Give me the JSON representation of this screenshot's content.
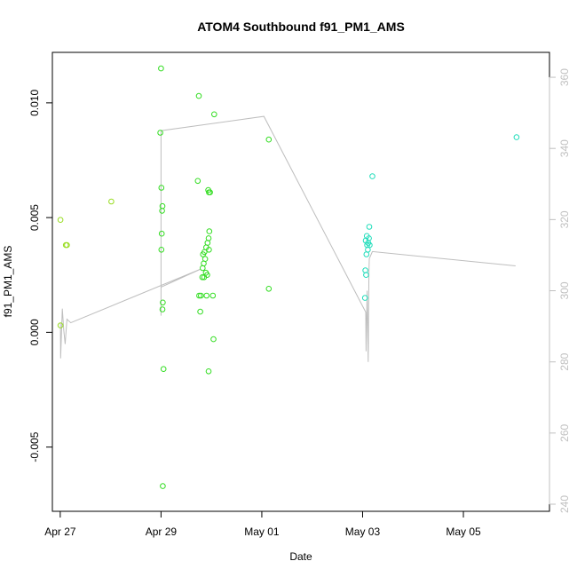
{
  "chart_data": {
    "type": "scatter",
    "title": "ATOM4 Southbound f91_PM1_AMS",
    "xlabel": "Date",
    "ylabel": "f91_PM1_AMS",
    "x_ticks": [
      "Apr 27",
      "Apr 29",
      "May 01",
      "May 03",
      "May 05"
    ],
    "y_ticks": [
      "-0.005",
      "0.000",
      "0.005",
      "0.010"
    ],
    "y2_ticks": [
      "240",
      "260",
      "280",
      "300",
      "320",
      "340",
      "360"
    ],
    "xlim": [
      "2012-04-26 20:15",
      "2012-05-06 17:00"
    ],
    "ylim": [
      -0.0078,
      0.0122
    ],
    "y2lim": [
      238,
      367
    ],
    "colors": {
      "point_green": "#33dd22",
      "point_lime": "#99dd22",
      "point_cyan": "#22ddbb",
      "line": "#bebebe",
      "axis": "#000000",
      "axis_right": "#c0c0c0"
    },
    "points": [
      {
        "t": "2012-04-27 00:05",
        "y": 0.0003,
        "c": "point_lime"
      },
      {
        "t": "2012-04-27 00:05",
        "y": 0.0049,
        "c": "point_lime"
      },
      {
        "t": "2012-04-27 02:40",
        "y": 0.0038,
        "c": "point_lime"
      },
      {
        "t": "2012-04-27 03:10",
        "y": 0.0038,
        "c": "point_lime"
      },
      {
        "t": "2012-04-28 00:20",
        "y": 0.0057,
        "c": "point_lime"
      },
      {
        "t": "2012-04-29 00:00",
        "y": 0.0115,
        "c": "point_green"
      },
      {
        "t": "2012-04-28 23:40",
        "y": 0.0087,
        "c": "point_green"
      },
      {
        "t": "2012-04-29 00:10",
        "y": 0.0063,
        "c": "point_green"
      },
      {
        "t": "2012-04-29 00:40",
        "y": 0.0055,
        "c": "point_green"
      },
      {
        "t": "2012-04-29 00:30",
        "y": 0.0053,
        "c": "point_green"
      },
      {
        "t": "2012-04-29 00:20",
        "y": 0.0043,
        "c": "point_green"
      },
      {
        "t": "2012-04-29 00:10",
        "y": 0.0036,
        "c": "point_green"
      },
      {
        "t": "2012-04-29 00:50",
        "y": 0.0013,
        "c": "point_green"
      },
      {
        "t": "2012-04-29 00:40",
        "y": 0.001,
        "c": "point_green"
      },
      {
        "t": "2012-04-29 01:10",
        "y": -0.0016,
        "c": "point_green"
      },
      {
        "t": "2012-04-29 00:50",
        "y": -0.0067,
        "c": "point_green"
      },
      {
        "t": "2012-04-29 18:00",
        "y": 0.0103,
        "c": "point_green"
      },
      {
        "t": "2012-04-29 17:30",
        "y": 0.0066,
        "c": "point_green"
      },
      {
        "t": "2012-04-29 22:30",
        "y": 0.0062,
        "c": "point_green"
      },
      {
        "t": "2012-04-29 22:50",
        "y": 0.0061,
        "c": "point_green"
      },
      {
        "t": "2012-04-29 23:20",
        "y": 0.0061,
        "c": "point_green"
      },
      {
        "t": "2012-04-29 23:00",
        "y": 0.0044,
        "c": "point_green"
      },
      {
        "t": "2012-04-29 22:40",
        "y": 0.0041,
        "c": "point_green"
      },
      {
        "t": "2012-04-29 22:10",
        "y": 0.0039,
        "c": "point_green"
      },
      {
        "t": "2012-04-29 21:30",
        "y": 0.0037,
        "c": "point_green"
      },
      {
        "t": "2012-04-29 22:50",
        "y": 0.0036,
        "c": "point_green"
      },
      {
        "t": "2012-04-29 20:40",
        "y": 0.0035,
        "c": "point_green"
      },
      {
        "t": "2012-04-29 20:00",
        "y": 0.0034,
        "c": "point_green"
      },
      {
        "t": "2012-04-29 21:00",
        "y": 0.0032,
        "c": "point_green"
      },
      {
        "t": "2012-04-29 20:20",
        "y": 0.003,
        "c": "point_green"
      },
      {
        "t": "2012-04-29 19:50",
        "y": 0.0028,
        "c": "point_green"
      },
      {
        "t": "2012-04-29 21:20",
        "y": 0.0026,
        "c": "point_green"
      },
      {
        "t": "2012-04-29 22:00",
        "y": 0.0025,
        "c": "point_green"
      },
      {
        "t": "2012-04-29 20:30",
        "y": 0.0024,
        "c": "point_green"
      },
      {
        "t": "2012-04-29 19:40",
        "y": 0.0024,
        "c": "point_green"
      },
      {
        "t": "2012-04-29 18:10",
        "y": 0.0016,
        "c": "point_green"
      },
      {
        "t": "2012-04-29 19:00",
        "y": 0.0016,
        "c": "point_green"
      },
      {
        "t": "2012-04-29 21:40",
        "y": 0.0016,
        "c": "point_green"
      },
      {
        "t": "2012-04-30 00:40",
        "y": 0.0016,
        "c": "point_green"
      },
      {
        "t": "2012-04-29 18:40",
        "y": 0.0009,
        "c": "point_green"
      },
      {
        "t": "2012-04-30 01:00",
        "y": -0.0003,
        "c": "point_green"
      },
      {
        "t": "2012-04-29 22:40",
        "y": -0.0017,
        "c": "point_green"
      },
      {
        "t": "2012-04-30 01:20",
        "y": 0.0095,
        "c": "point_green"
      },
      {
        "t": "2012-05-01 03:20",
        "y": 0.0084,
        "c": "point_green"
      },
      {
        "t": "2012-05-01 03:20",
        "y": 0.0019,
        "c": "point_green"
      },
      {
        "t": "2012-05-03 03:10",
        "y": 0.0046,
        "c": "point_cyan"
      },
      {
        "t": "2012-05-03 02:00",
        "y": 0.0042,
        "c": "point_cyan"
      },
      {
        "t": "2012-05-03 03:00",
        "y": 0.0041,
        "c": "point_cyan"
      },
      {
        "t": "2012-05-03 01:30",
        "y": 0.004,
        "c": "point_cyan"
      },
      {
        "t": "2012-05-03 02:40",
        "y": 0.0039,
        "c": "point_cyan"
      },
      {
        "t": "2012-05-03 02:10",
        "y": 0.0038,
        "c": "point_cyan"
      },
      {
        "t": "2012-05-03 03:20",
        "y": 0.0038,
        "c": "point_cyan"
      },
      {
        "t": "2012-05-03 02:30",
        "y": 0.0036,
        "c": "point_cyan"
      },
      {
        "t": "2012-05-03 01:50",
        "y": 0.0034,
        "c": "point_cyan"
      },
      {
        "t": "2012-05-03 01:20",
        "y": 0.0027,
        "c": "point_cyan"
      },
      {
        "t": "2012-05-03 01:40",
        "y": 0.0025,
        "c": "point_cyan"
      },
      {
        "t": "2012-05-03 01:10",
        "y": 0.0015,
        "c": "point_cyan"
      },
      {
        "t": "2012-05-03 04:40",
        "y": 0.0068,
        "c": "point_cyan"
      },
      {
        "t": "2012-05-06 01:20",
        "y": 0.0085,
        "c": "point_cyan"
      }
    ],
    "line_series": {
      "axis": "right",
      "points": [
        {
          "t": "2012-04-27 00:05",
          "v": 291
        },
        {
          "t": "2012-04-27 00:10",
          "v": 281
        },
        {
          "t": "2012-04-27 01:00",
          "v": 295
        },
        {
          "t": "2012-04-27 01:40",
          "v": 289
        },
        {
          "t": "2012-04-27 02:20",
          "v": 285
        },
        {
          "t": "2012-04-27 03:10",
          "v": 292
        },
        {
          "t": "2012-04-27 05:00",
          "v": 291
        },
        {
          "t": "2012-04-29 18:30",
          "v": 306
        },
        {
          "t": "2012-04-29 00:00",
          "v": 301
        },
        {
          "t": "2012-04-29 00:00",
          "v": 337
        },
        {
          "t": "2012-04-29 00:00",
          "v": 293
        },
        {
          "t": "2012-04-29 00:00",
          "v": 345
        },
        {
          "t": "2012-05-01 01:00",
          "v": 349
        },
        {
          "t": "2012-05-03 01:30",
          "v": 294
        },
        {
          "t": "2012-05-03 01:40",
          "v": 283
        },
        {
          "t": "2012-05-03 02:10",
          "v": 300
        },
        {
          "t": "2012-05-03 02:40",
          "v": 280
        },
        {
          "t": "2012-05-03 03:00",
          "v": 305
        },
        {
          "t": "2012-05-03 03:10",
          "v": 309
        },
        {
          "t": "2012-05-03 04:40",
          "v": 311
        },
        {
          "t": "2012-05-06 00:50",
          "v": 307
        }
      ]
    }
  }
}
